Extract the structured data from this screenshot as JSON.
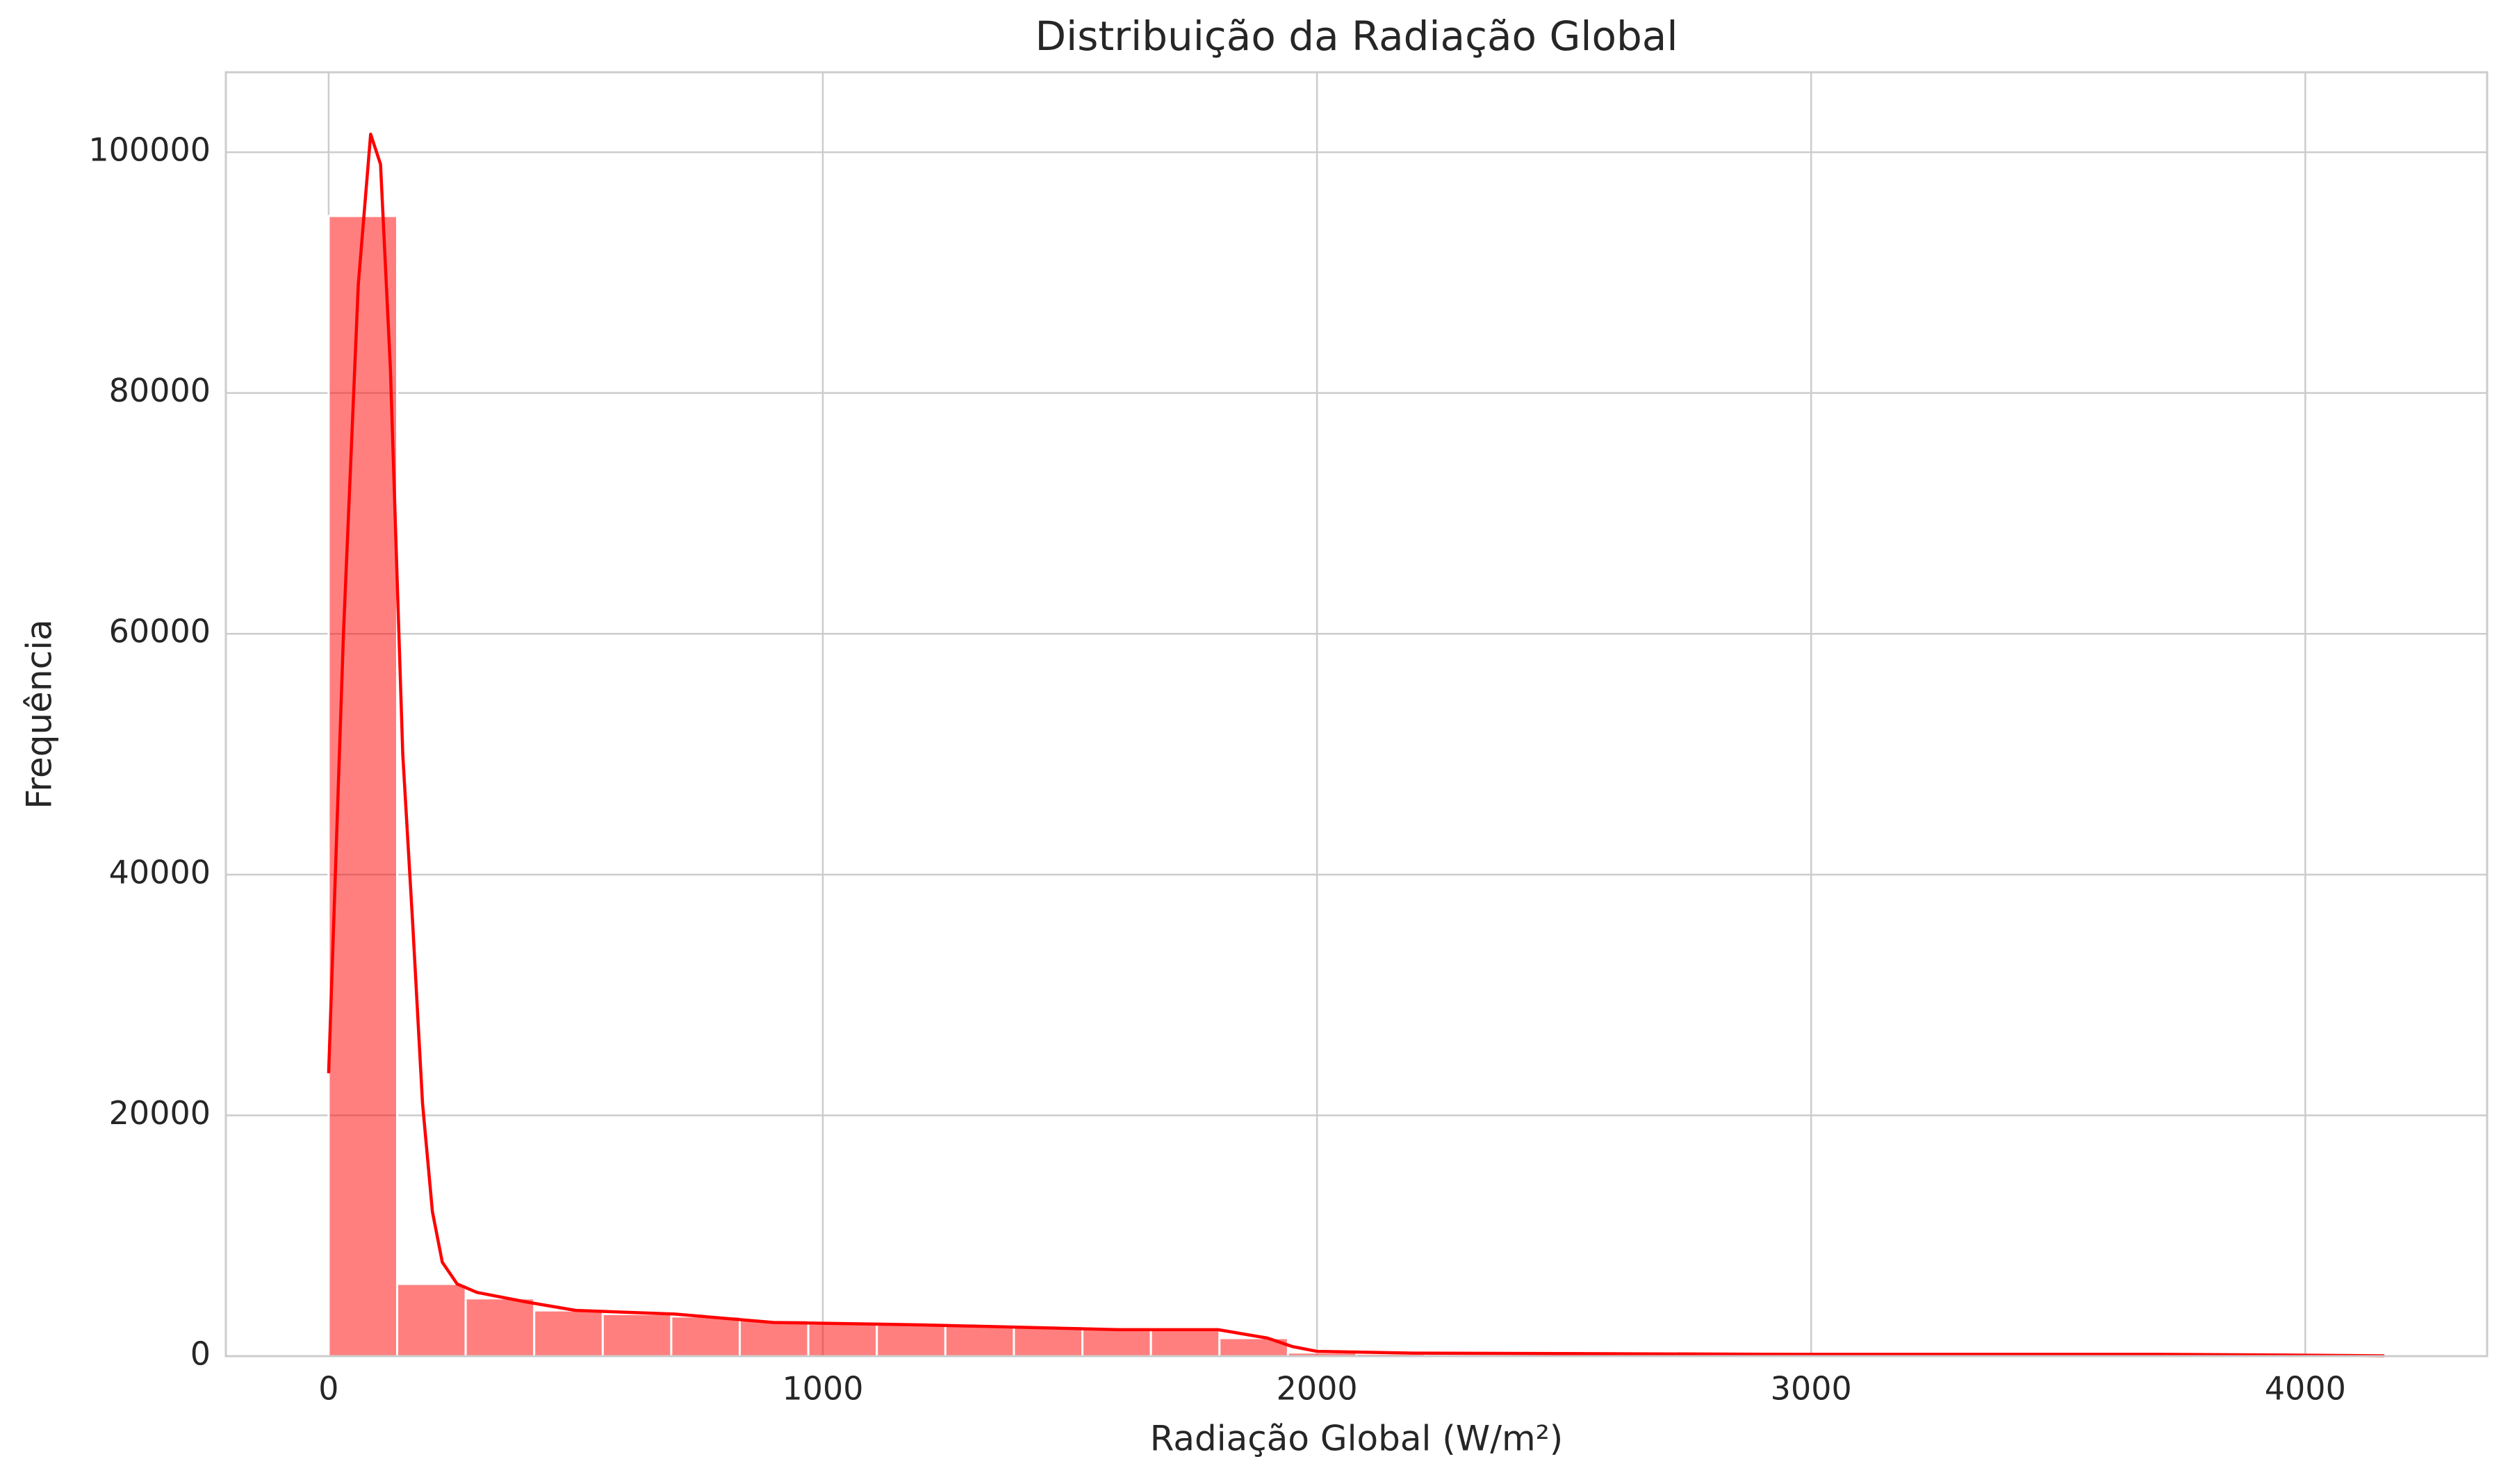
{
  "chart_data": {
    "type": "histogram",
    "title": "Distribuição da Radiação Global",
    "xlabel": "Radiação Global (W/m²)",
    "ylabel": "Frequência",
    "bins": [
      0,
      138.67,
      277.33,
      416,
      554.67,
      693.33,
      832,
      970.67,
      1109.33,
      1248,
      1386.67,
      1525.33,
      1664,
      1802.67,
      1941.33,
      2080,
      2218.67,
      2357.33,
      2496,
      2634.67,
      2773.33,
      2912,
      3050.67,
      3189.33,
      3328,
      3466.67,
      3605.33,
      3744,
      3882.67,
      4021.33,
      4160
    ],
    "counts": [
      94700,
      6000,
      4800,
      3800,
      3500,
      3300,
      3000,
      2700,
      2700,
      2600,
      2500,
      2400,
      2200,
      1500,
      300,
      200,
      180,
      160,
      150,
      140,
      130,
      120,
      110,
      100,
      100,
      90,
      80,
      70,
      60,
      50
    ],
    "color": "#ff0000",
    "kde": {
      "x": [
        0,
        30,
        60,
        85,
        105,
        125,
        150,
        170,
        190,
        210,
        230,
        260,
        300,
        400,
        500,
        700,
        900,
        1200,
        1400,
        1600,
        1800,
        1900,
        1950,
        2000,
        2200,
        3000,
        3700,
        4000,
        4160
      ],
      "y": [
        23500,
        60000,
        89000,
        101500,
        99000,
        82000,
        50000,
        36000,
        21000,
        12000,
        7800,
        6000,
        5300,
        4500,
        3800,
        3500,
        2800,
        2600,
        2400,
        2200,
        2200,
        1500,
        800,
        400,
        250,
        150,
        150,
        80,
        30
      ]
    },
    "xlim": [
      -208,
      4368
    ],
    "ylim": [
      0,
      106640
    ],
    "xticks": [
      0,
      1000,
      2000,
      3000,
      4000
    ],
    "yticks": [
      0,
      20000,
      40000,
      60000,
      80000,
      100000
    ],
    "grid": true
  }
}
